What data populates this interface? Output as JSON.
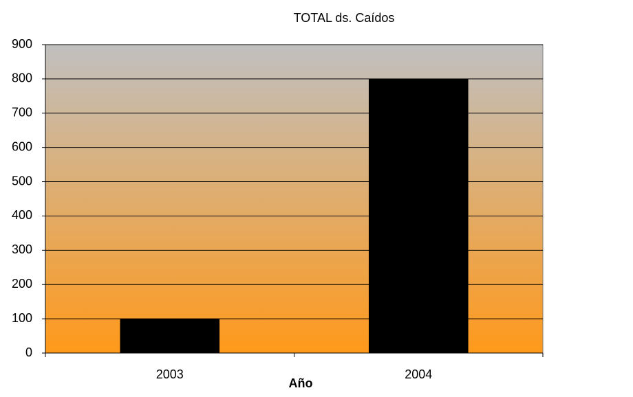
{
  "chart_data": {
    "type": "bar",
    "title": "TOTAL ds. Caídos",
    "x_label": "Año",
    "categories": [
      "2003",
      "2004"
    ],
    "values": [
      100,
      800
    ],
    "color": "#000000",
    "ylim": [
      0,
      900
    ],
    "yticks": [
      0,
      100,
      200,
      300,
      400,
      500,
      600,
      700,
      800,
      900
    ],
    "grid": true
  }
}
